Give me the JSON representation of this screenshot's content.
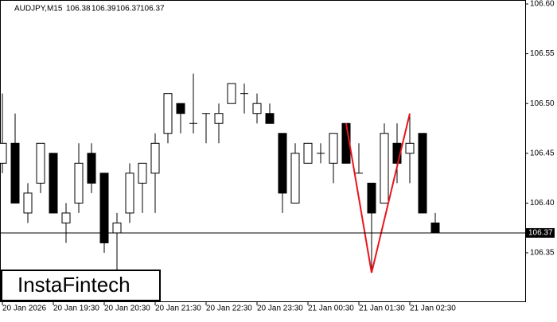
{
  "chart_data": {
    "type": "candlestick",
    "title": "AUDJPY,M15",
    "watermark": "InstaFintech",
    "categories": [
      "20 Jan 2026",
      null,
      null,
      null,
      "20 Jan 19:30",
      null,
      null,
      null,
      "20 Jan 20:30",
      null,
      null,
      null,
      "20 Jan 21:30",
      null,
      null,
      null,
      "20 Jan 22:30",
      null,
      null,
      null,
      "20 Jan 23:30",
      null,
      null,
      null,
      "21 Jan 00:30",
      null,
      null,
      null,
      "21 Jan 01:30",
      null,
      null,
      null,
      "21 Jan 02:30",
      null,
      null
    ],
    "open": [
      106.44,
      106.46,
      106.39,
      106.42,
      106.45,
      106.38,
      106.4,
      106.45,
      106.43,
      106.37,
      106.39,
      106.42,
      106.43,
      106.47,
      106.5,
      106.48,
      106.49,
      106.48,
      106.5,
      106.51,
      106.49,
      106.49,
      106.47,
      106.4,
      106.44,
      106.45,
      106.44,
      106.48,
      106.43,
      106.42,
      106.4,
      106.46,
      106.45,
      106.47,
      106.38
    ],
    "high": [
      106.51,
      106.49,
      106.42,
      106.46,
      106.45,
      106.4,
      106.46,
      106.46,
      106.43,
      106.39,
      106.44,
      106.44,
      106.47,
      106.51,
      106.5,
      106.53,
      106.49,
      106.5,
      106.52,
      106.52,
      106.51,
      106.5,
      106.47,
      106.46,
      106.46,
      106.46,
      106.47,
      106.48,
      106.46,
      106.42,
      106.48,
      106.48,
      106.49,
      106.47,
      106.39
    ],
    "low": [
      106.43,
      106.4,
      106.38,
      106.41,
      106.39,
      106.36,
      106.39,
      106.41,
      106.35,
      106.33,
      106.38,
      106.39,
      106.39,
      106.46,
      106.47,
      106.47,
      106.46,
      106.46,
      106.5,
      106.49,
      106.48,
      106.48,
      106.39,
      106.4,
      106.44,
      106.44,
      106.42,
      106.44,
      106.43,
      106.33,
      106.4,
      106.42,
      106.42,
      106.39,
      106.37
    ],
    "close": [
      106.46,
      106.4,
      106.41,
      106.46,
      106.39,
      106.39,
      106.44,
      106.42,
      106.36,
      106.38,
      106.43,
      106.44,
      106.46,
      106.51,
      106.49,
      106.48,
      106.49,
      106.49,
      106.52,
      106.51,
      106.5,
      106.48,
      106.41,
      106.45,
      106.46,
      106.45,
      106.47,
      106.44,
      106.43,
      106.39,
      106.47,
      106.44,
      106.46,
      106.39,
      106.37
    ],
    "up_color": "#ffffff",
    "down_color": "#000000",
    "current_price": 106.37,
    "pattern": {
      "color": "#e8141c",
      "x": [
        27,
        29,
        32
      ],
      "values": [
        106.48,
        106.33,
        106.49
      ]
    },
    "ylim": [
      106.3,
      106.6
    ],
    "yticks": [
      106.35,
      {
        "value": 106.4,
        "label": "106.40"
      },
      106.45,
      {
        "value": 106.5,
        "label": "106.50"
      },
      106.55,
      {
        "value": 106.6,
        "label": "106.60"
      }
    ]
  }
}
